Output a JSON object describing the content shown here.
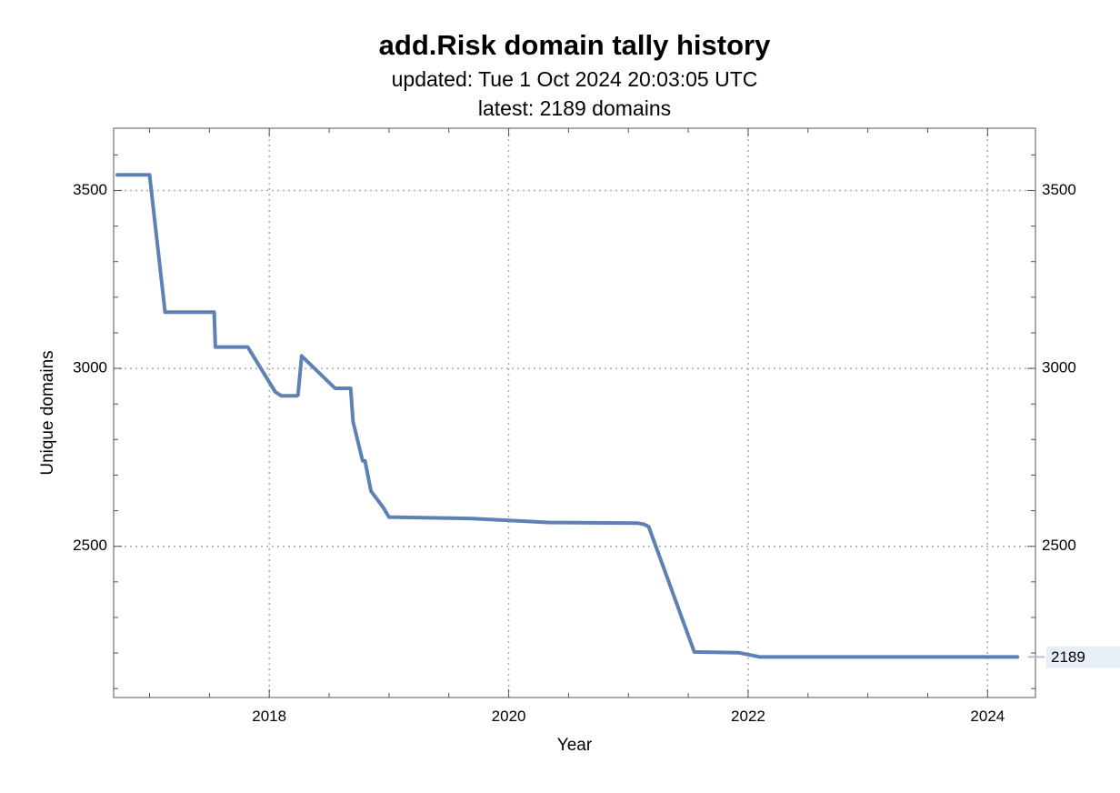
{
  "chart_data": {
    "type": "line",
    "title": "add.Risk domain tally history",
    "subtitles": [
      "updated: Tue 1 Oct 2024 20:03:05 UTC",
      "latest: 2189 domains"
    ],
    "xlabel": "Year",
    "ylabel": "Unique domains",
    "xlim": [
      2016.7,
      2024.4
    ],
    "ylim": [
      2075,
      3675
    ],
    "x_ticks": [
      2018,
      2020,
      2022,
      2024
    ],
    "y_ticks": [
      2500,
      3000,
      3500
    ],
    "grid": true,
    "line_color": "#5e81b5",
    "end_label": "2189",
    "series": [
      {
        "x": [
          2016.73,
          2017.0,
          2017.13,
          2017.54,
          2017.55,
          2017.82,
          2018.05,
          2018.1,
          2018.23,
          2018.24,
          2018.27,
          2018.55,
          2018.68,
          2018.7,
          2018.78,
          2018.8,
          2018.85,
          2018.95,
          2019.0,
          2019.7,
          2020.0,
          2020.33,
          2021.08,
          2021.13,
          2021.17,
          2021.55,
          2021.92,
          2022.1,
          2022.7,
          2024.25
        ],
        "y": [
          3544,
          3544,
          3158,
          3158,
          3060,
          3060,
          2934,
          2923,
          2923,
          2925,
          3035,
          2944,
          2944,
          2850,
          2740,
          2740,
          2655,
          2610,
          2582,
          2578,
          2573,
          2567,
          2565,
          2562,
          2555,
          2203,
          2201,
          2189,
          2189,
          2189
        ]
      }
    ]
  }
}
